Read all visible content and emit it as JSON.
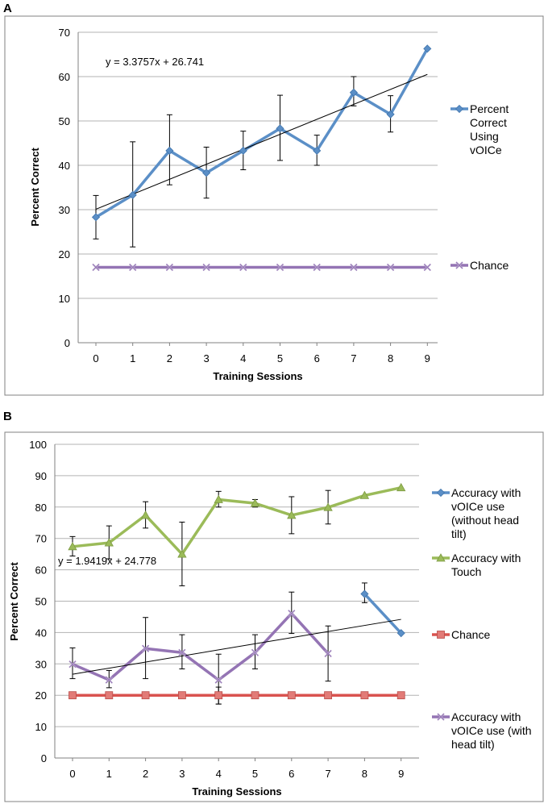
{
  "panels": {
    "a_label": "A",
    "b_label": "B"
  },
  "chart_data": [
    {
      "type": "line",
      "title": "",
      "xlabel": "Training Sessions",
      "ylabel": "Percent Correct",
      "categories": [
        "0",
        "1",
        "2",
        "3",
        "4",
        "5",
        "6",
        "7",
        "8",
        "9"
      ],
      "yticks": [
        "0",
        "10",
        "20",
        "30",
        "40",
        "50",
        "60",
        "70"
      ],
      "ylim": [
        0,
        70
      ],
      "grid": true,
      "legend_position": "right",
      "series": [
        {
          "name": "Percent Correct Using vOICe",
          "legend_lines": [
            "Percent",
            "Correct",
            "Using",
            "vOICe"
          ],
          "color": "#5b8fc7",
          "marker": "diamond",
          "values": [
            28.3,
            33.3,
            43.3,
            38.3,
            43.3,
            48.3,
            43.3,
            56.4,
            51.5,
            66.3
          ],
          "err_low": [
            23.4,
            21.6,
            35.6,
            32.6,
            39.0,
            41.1,
            40.0,
            53.4,
            47.5,
            66.3
          ],
          "err_high": [
            33.2,
            45.3,
            51.4,
            44.1,
            47.7,
            55.8,
            46.8,
            60.0,
            55.7,
            66.3
          ]
        },
        {
          "name": "Chance",
          "legend_lines": [
            "Chance"
          ],
          "color": "#9474b4",
          "marker": "x",
          "values": [
            17,
            17,
            17,
            17,
            17,
            17,
            17,
            17,
            17,
            17
          ]
        }
      ],
      "trendline": {
        "equation": "y = 3.3757x + 26.741",
        "start": 30.1,
        "end": 60.5
      }
    },
    {
      "type": "line",
      "title": "",
      "xlabel": "Training Sessions",
      "ylabel": "Percent Correct",
      "categories": [
        "0",
        "1",
        "2",
        "3",
        "4",
        "5",
        "6",
        "7",
        "8",
        "9"
      ],
      "yticks": [
        "0",
        "10",
        "20",
        "30",
        "40",
        "50",
        "60",
        "70",
        "80",
        "90",
        "100"
      ],
      "ylim": [
        0,
        100
      ],
      "grid": true,
      "legend_position": "right",
      "series": [
        {
          "name": "Accuracy with vOICe use (without head tilt)",
          "legend_lines": [
            "Accuracy with",
            "vOICe use",
            "(without head",
            "tilt)"
          ],
          "color": "#5b8fc7",
          "marker": "diamond",
          "values": [
            null,
            null,
            null,
            null,
            null,
            null,
            null,
            null,
            52.3,
            39.8
          ],
          "err_low": [
            null,
            null,
            null,
            null,
            null,
            null,
            null,
            null,
            49.5,
            39.8
          ],
          "err_high": [
            null,
            null,
            null,
            null,
            null,
            null,
            null,
            null,
            55.8,
            39.8
          ]
        },
        {
          "name": "Accuracy with Touch",
          "legend_lines": [
            "Accuracy with",
            "Touch"
          ],
          "color": "#9bbb59",
          "marker": "triangle",
          "values": [
            67.4,
            68.6,
            77.4,
            65.0,
            82.4,
            81.2,
            77.4,
            79.9,
            83.7,
            86.2
          ],
          "err_low": [
            64.4,
            63.5,
            73.3,
            54.9,
            80.0,
            80.0,
            71.5,
            74.6,
            83.7,
            86.2
          ],
          "err_high": [
            70.6,
            74.0,
            81.7,
            75.2,
            85.0,
            82.4,
            83.3,
            85.3,
            83.7,
            86.2
          ]
        },
        {
          "name": "Chance",
          "legend_lines": [
            "Chance"
          ],
          "color": "#d9534f",
          "marker": "square",
          "values": [
            20,
            20,
            20,
            20,
            20,
            20,
            20,
            20,
            20,
            20
          ],
          "err_low": [
            null,
            null,
            null,
            null,
            17.2,
            null,
            null,
            null,
            null,
            null
          ],
          "err_high": [
            null,
            null,
            null,
            null,
            22.6,
            null,
            null,
            null,
            null,
            null
          ]
        },
        {
          "name": "Accuracy with vOICe use (with head tilt)",
          "legend_lines": [
            "Accuracy with",
            "vOICe use (with",
            "head tilt)"
          ],
          "color": "#9474b4",
          "marker": "x",
          "values": [
            29.9,
            24.9,
            34.9,
            33.6,
            24.9,
            33.6,
            46.1,
            33.3,
            null,
            null
          ],
          "err_low": [
            25.3,
            22.4,
            25.3,
            28.4,
            17.2,
            28.4,
            39.7,
            24.5,
            null,
            null
          ],
          "err_high": [
            35.1,
            27.9,
            44.8,
            39.3,
            33.1,
            39.3,
            52.9,
            42.1,
            null,
            null
          ]
        }
      ],
      "trendline": {
        "equation": "y = 1.9419x + 24.778",
        "start": 26.7,
        "end": 44.2
      }
    }
  ]
}
